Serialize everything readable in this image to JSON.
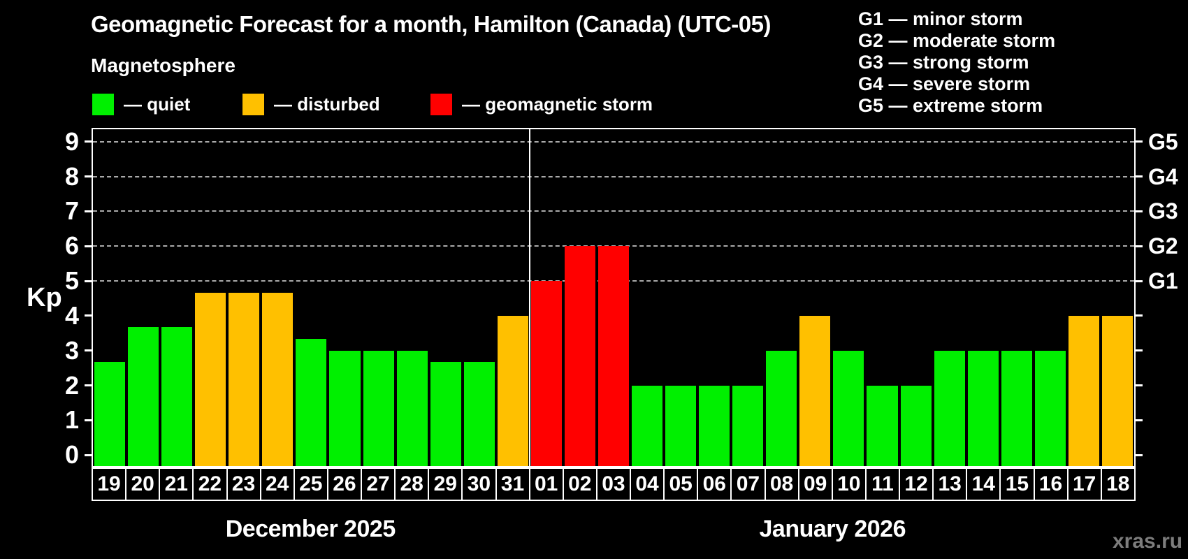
{
  "header": {
    "title": "Geomagnetic Forecast for a month, Hamilton (Canada) (UTC-05)"
  },
  "legend": {
    "title": "Magnetosphere",
    "items": [
      {
        "label": "— quiet",
        "status": "quiet",
        "color": "#00f000"
      },
      {
        "label": "— disturbed",
        "status": "disturbed",
        "color": "#ffc000"
      },
      {
        "label": "— geomagnetic storm",
        "status": "storm",
        "color": "#ff0000"
      }
    ]
  },
  "storm_scale_legend": {
    "items": [
      {
        "label": "G1 — minor storm"
      },
      {
        "label": "G2 — moderate storm"
      },
      {
        "label": "G3 — strong storm"
      },
      {
        "label": "G4 — severe storm"
      },
      {
        "label": "G5 — extreme storm"
      }
    ]
  },
  "axes": {
    "y_left": {
      "label": "Kp",
      "ticks": [
        "0",
        "1",
        "2",
        "3",
        "4",
        "5",
        "6",
        "7",
        "8",
        "9"
      ]
    },
    "y_right": {
      "labels": [
        {
          "label": "G1",
          "kp": 5
        },
        {
          "label": "G2",
          "kp": 6
        },
        {
          "label": "G3",
          "kp": 7
        },
        {
          "label": "G4",
          "kp": 8
        },
        {
          "label": "G5",
          "kp": 9
        }
      ]
    }
  },
  "watermark": "xras.ru",
  "chart_data": {
    "type": "bar",
    "title": "Geomagnetic Forecast for a month, Hamilton (Canada) (UTC-05)",
    "xlabel": "",
    "ylabel": "Kp",
    "ylim": [
      0,
      9
    ],
    "gridlines_at_kp": [
      5,
      6,
      7,
      8,
      9
    ],
    "legend_position": "top-left",
    "categories": [
      "19",
      "20",
      "21",
      "22",
      "23",
      "24",
      "25",
      "26",
      "27",
      "28",
      "29",
      "30",
      "31",
      "01",
      "02",
      "03",
      "04",
      "05",
      "06",
      "07",
      "08",
      "09",
      "10",
      "11",
      "12",
      "13",
      "14",
      "15",
      "16",
      "17",
      "18"
    ],
    "values": [
      2.67,
      3.67,
      3.67,
      4.67,
      4.67,
      4.67,
      3.33,
      3,
      3,
      3,
      2.67,
      2.67,
      4,
      5,
      6,
      6,
      2,
      2,
      2,
      2,
      3,
      4,
      3,
      2,
      2,
      3,
      3,
      3,
      3,
      4,
      4
    ],
    "statuses": [
      "quiet",
      "quiet",
      "quiet",
      "disturbed",
      "disturbed",
      "disturbed",
      "quiet",
      "quiet",
      "quiet",
      "quiet",
      "quiet",
      "quiet",
      "disturbed",
      "storm",
      "storm",
      "storm",
      "quiet",
      "quiet",
      "quiet",
      "quiet",
      "quiet",
      "disturbed",
      "quiet",
      "quiet",
      "quiet",
      "quiet",
      "quiet",
      "quiet",
      "quiet",
      "disturbed",
      "disturbed"
    ],
    "status_colors": {
      "quiet": "#00f000",
      "disturbed": "#ffc000",
      "storm": "#ff0000"
    },
    "months": [
      {
        "label": "December 2025",
        "days": 13
      },
      {
        "label": "January 2026",
        "days": 18
      }
    ]
  }
}
